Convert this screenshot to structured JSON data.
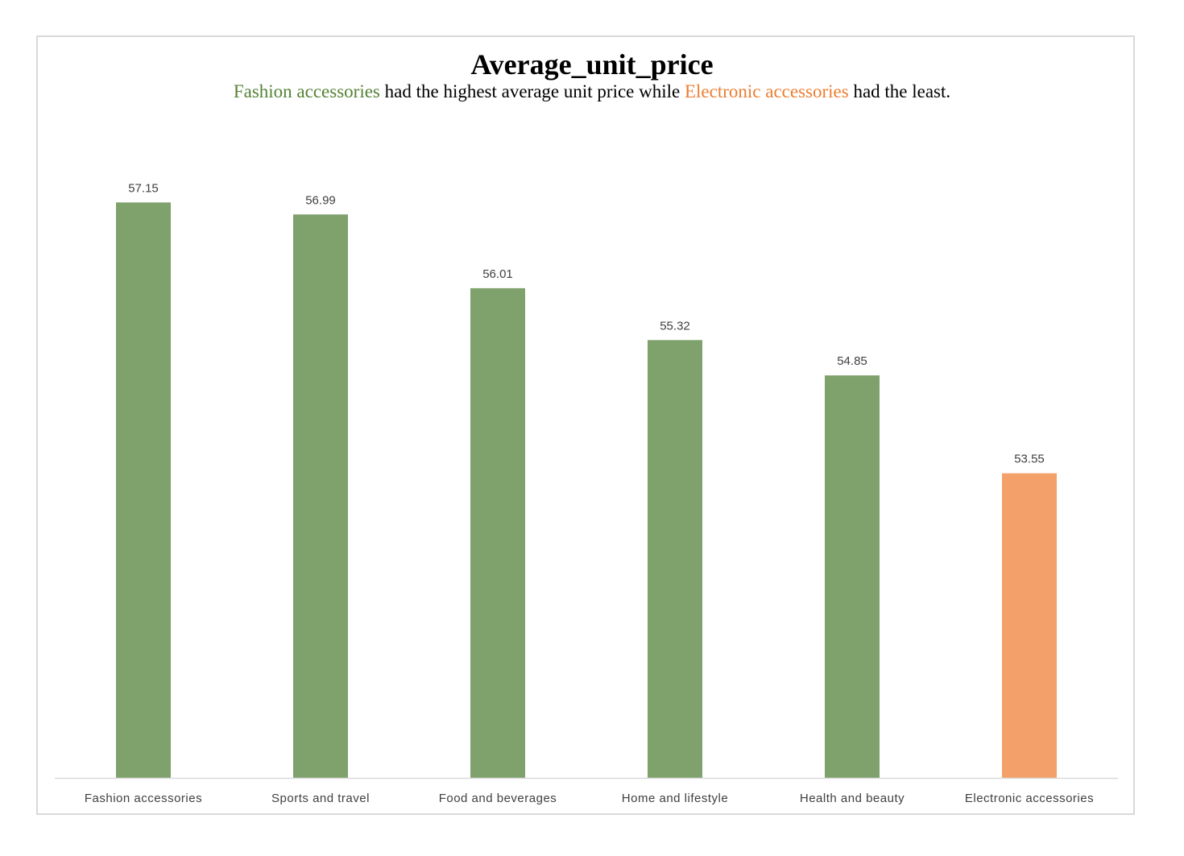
{
  "chart_data": {
    "type": "bar",
    "title": "Average_unit_price",
    "subtitle": {
      "highlight_high": "Fashion accessories",
      "text_middle": " had the highest average unit price while ",
      "highlight_low": "Electronic accessories",
      "text_end": " had the least."
    },
    "categories": [
      "Fashion accessories",
      "Sports and travel",
      "Food and beverages",
      "Home and lifestyle",
      "Health and beauty",
      "Electronic accessories"
    ],
    "values": [
      57.15,
      56.99,
      56.01,
      55.32,
      54.85,
      53.55
    ],
    "value_labels": [
      "57.15",
      "56.99",
      "56.01",
      "55.32",
      "54.85",
      "53.55"
    ],
    "ylim": [
      49.5,
      57.7
    ],
    "xlabel": "",
    "ylabel": "",
    "grid": false,
    "legend": "none",
    "colors": {
      "default": "#7fa16c",
      "highlight": "#f4a06a",
      "subtitle_high": "#548235",
      "subtitle_low": "#ed7d31",
      "axis": "#d9d9d9",
      "label": "#404040"
    },
    "highlight_index": 5
  }
}
